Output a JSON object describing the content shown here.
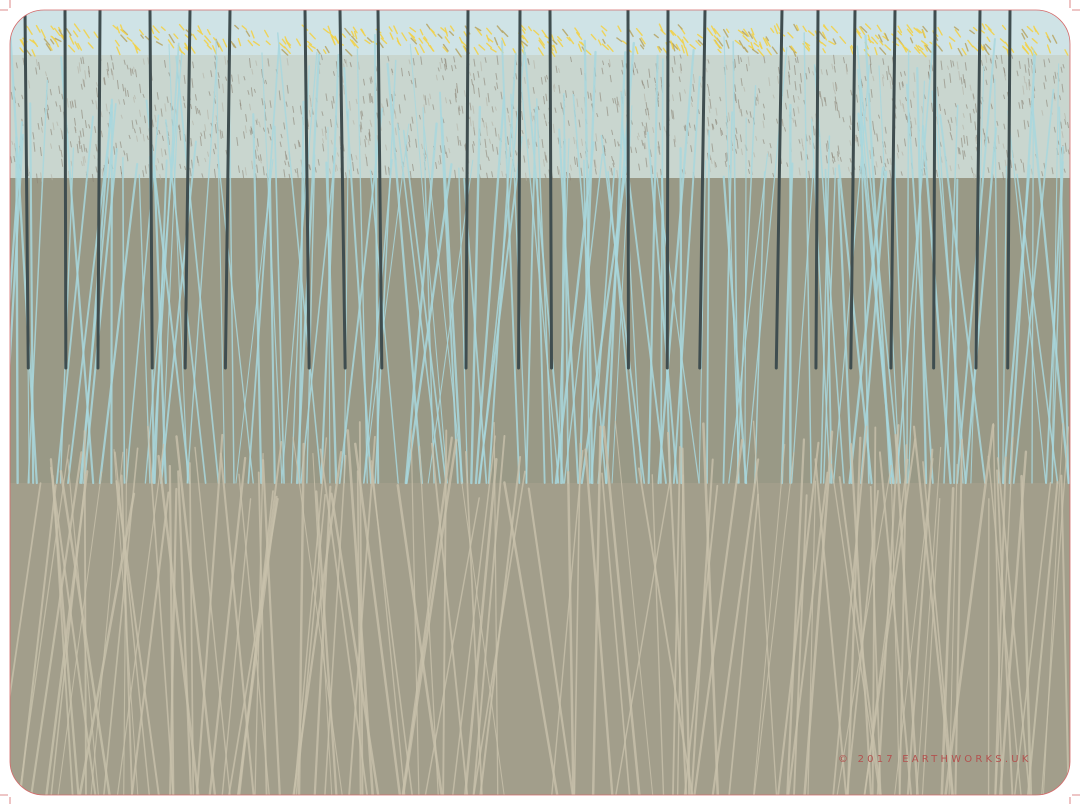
{
  "artwork": {
    "credit": "© 2017 EARTHWORKS.UK"
  }
}
